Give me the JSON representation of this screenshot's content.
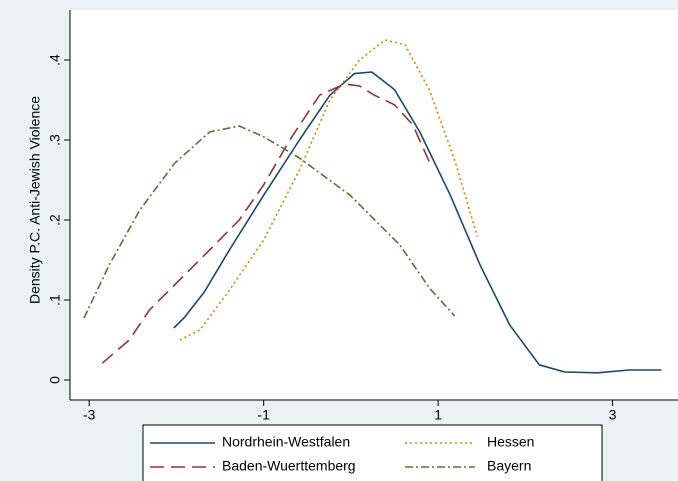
{
  "chart_data": {
    "type": "line",
    "ylabel": "Density P.C. Anti-Jewish Violence",
    "xlim": [
      -3.22,
      3.75
    ],
    "ylim": [
      -0.025,
      0.4625
    ],
    "xticks": [
      -3,
      -1,
      1,
      3
    ],
    "yticks": [
      0,
      {
        "value": 0.1,
        "label": ".1"
      },
      {
        "value": 0.2,
        "label": ".2"
      },
      {
        "value": 0.3,
        "label": ".3"
      },
      {
        "value": 0.4,
        "label": ".4"
      }
    ],
    "grid": false,
    "legend": "bottom",
    "series": [
      {
        "name": "Nordrhein-Westfalen",
        "color": "#1a476f",
        "line_style": "solid",
        "x": [
          -2.03,
          -1.91,
          -1.68,
          -1.39,
          -1,
          -0.59,
          -0.24,
          0.04,
          0.24,
          0.5,
          0.79,
          1.14,
          1.48,
          1.82,
          2.16,
          2.45,
          2.83,
          3.19,
          3.56
        ],
        "values": [
          0.065,
          0.078,
          0.11,
          0.163,
          0.231,
          0.3,
          0.356,
          0.383,
          0.385,
          0.363,
          0.31,
          0.231,
          0.144,
          0.069,
          0.019,
          0.01,
          0.009,
          0.0125,
          0.0125
        ]
      },
      {
        "name": "Hessen",
        "color": "#e37e00",
        "line_style": "dot",
        "x": [
          -1.96,
          -1.73,
          -1.39,
          -1,
          -0.59,
          -0.24,
          0.1,
          0.39,
          0.62,
          0.9,
          1.19,
          1.45
        ],
        "values": [
          0.05,
          0.0625,
          0.1125,
          0.175,
          0.2625,
          0.35,
          0.4,
          0.425,
          0.419,
          0.3625,
          0.275,
          0.179
        ]
      },
      {
        "name": "Baden-Wuerttemberg",
        "color": "#90353b",
        "line_style": "dash",
        "x": [
          -2.85,
          -2.54,
          -2.31,
          -2.02,
          -1.62,
          -1.28,
          -1,
          -0.7,
          -0.36,
          -0.07,
          0.1,
          0.27,
          0.5,
          0.71,
          0.9
        ],
        "values": [
          0.021,
          0.05,
          0.0875,
          0.119,
          0.1625,
          0.2,
          0.244,
          0.3,
          0.356,
          0.37,
          0.3675,
          0.356,
          0.344,
          0.319,
          0.2725
        ]
      },
      {
        "name": "Bayern",
        "color": "#55752f",
        "line_style": "dashdot",
        "x": [
          -3.06,
          -2.77,
          -2.42,
          -2.02,
          -1.62,
          -1.28,
          -1,
          -0.59,
          -0.01,
          0.56,
          0.9,
          1.19
        ],
        "values": [
          0.0775,
          0.144,
          0.2125,
          0.271,
          0.31,
          0.3175,
          0.304,
          0.2775,
          0.231,
          0.169,
          0.115,
          0.08
        ]
      }
    ]
  }
}
